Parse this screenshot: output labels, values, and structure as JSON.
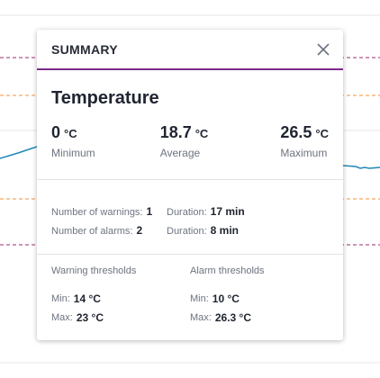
{
  "popover": {
    "title": "SUMMARY",
    "metric_name": "Temperature",
    "stats": [
      {
        "value": "0",
        "unit": "°C",
        "label": "Minimum"
      },
      {
        "value": "18.7",
        "unit": "°C",
        "label": "Average"
      },
      {
        "value": "26.5",
        "unit": "°C",
        "label": "Maximum"
      }
    ],
    "warnings": {
      "label": "Number of warnings:",
      "value": "1",
      "duration_label": "Duration:",
      "duration": "17 min"
    },
    "alarms": {
      "label": "Number of alarms:",
      "value": "2",
      "duration_label": "Duration:",
      "duration": "8 min"
    },
    "warning_thresholds": {
      "heading": "Warning thresholds",
      "min_label": "Min:",
      "min": "14 °C",
      "max_label": "Max:",
      "max": "23 °C"
    },
    "alarm_thresholds": {
      "heading": "Alarm thresholds",
      "min_label": "Min:",
      "min": "10 °C",
      "max_label": "Max:",
      "max": "26.3 °C"
    }
  },
  "colors": {
    "accent": "#7b2a8c",
    "alarm_line": "#9b2a6f",
    "warning_line": "#f0923a",
    "series_line": "#1f88b8"
  },
  "icons": {
    "close": "close-icon"
  }
}
